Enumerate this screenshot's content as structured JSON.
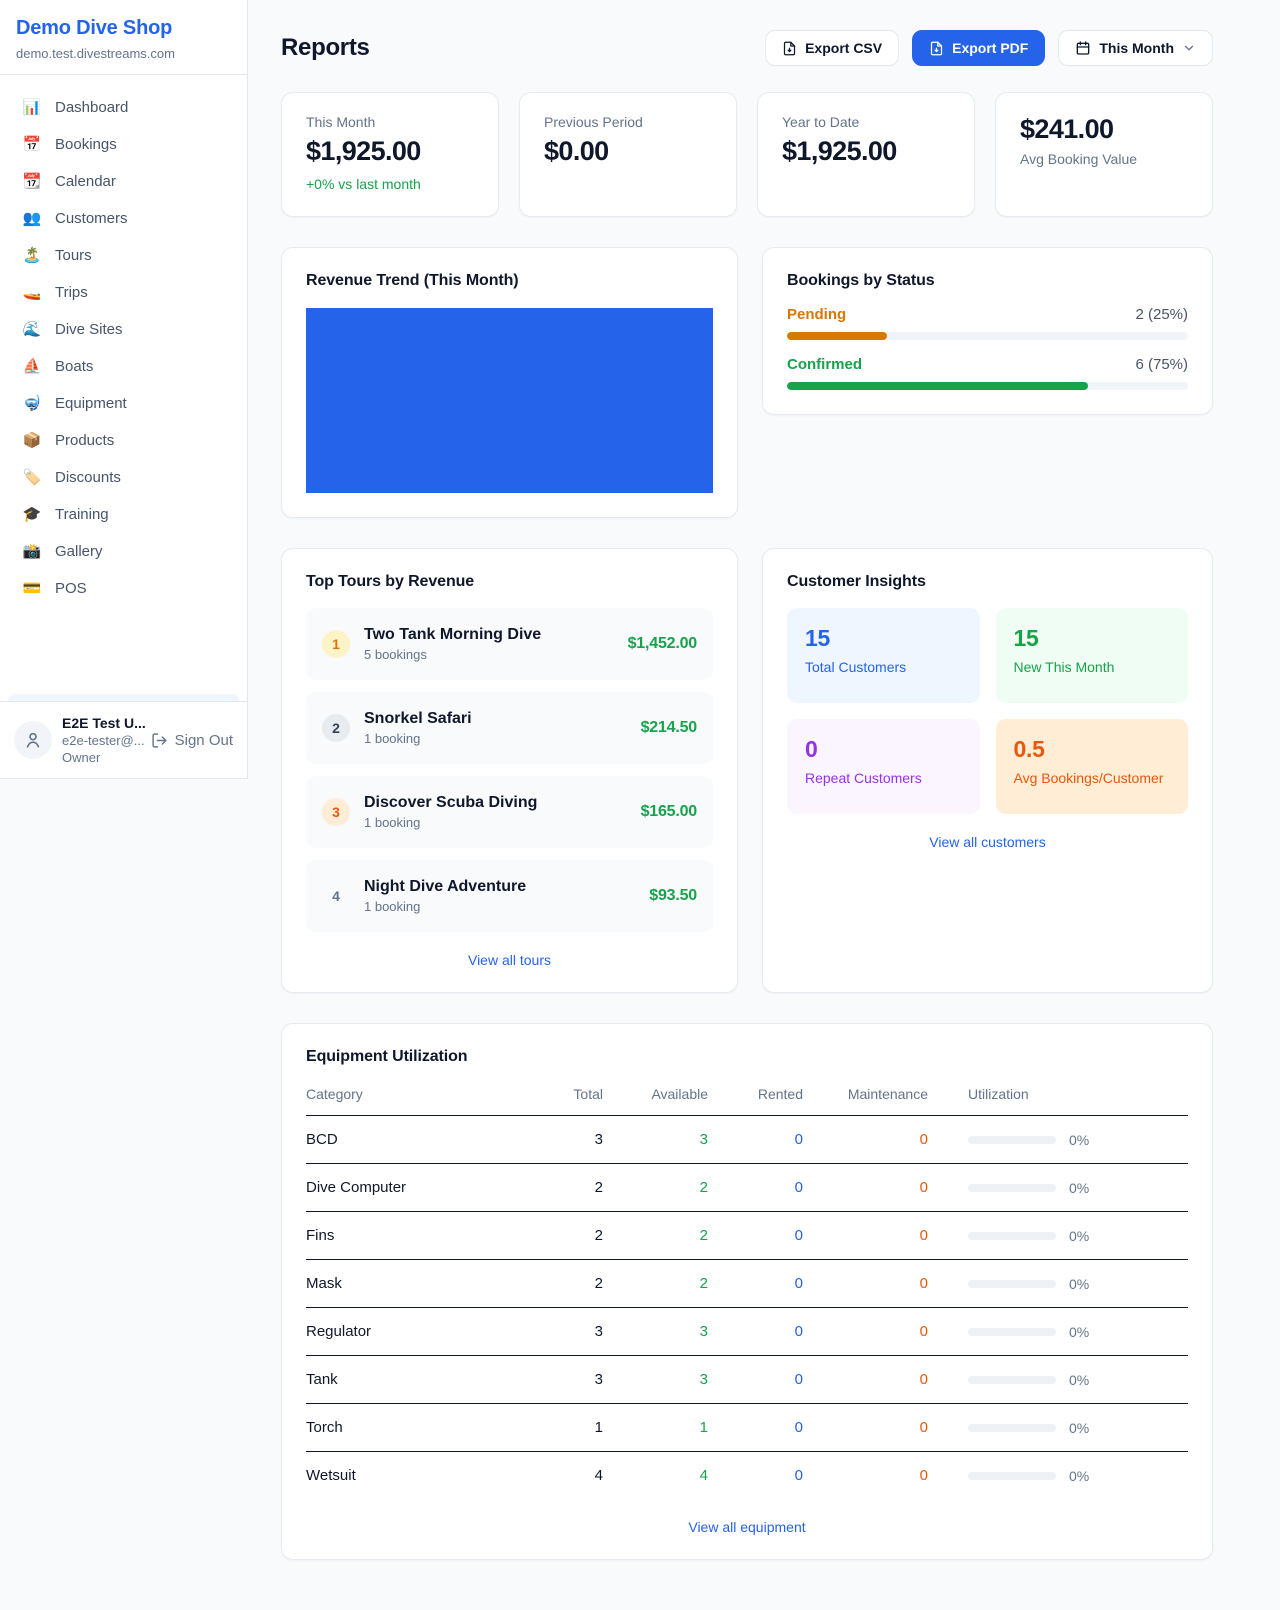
{
  "sidebar": {
    "brand": "Demo Dive Shop",
    "domain": "demo.test.divestreams.com",
    "items": [
      {
        "key": "dashboard",
        "icon": "📊",
        "label": "Dashboard"
      },
      {
        "key": "bookings",
        "icon": "📅",
        "label": "Bookings"
      },
      {
        "key": "calendar",
        "icon": "📆",
        "label": "Calendar"
      },
      {
        "key": "customers",
        "icon": "👥",
        "label": "Customers"
      },
      {
        "key": "tours",
        "icon": "🏝️",
        "label": "Tours"
      },
      {
        "key": "trips",
        "icon": "🚤",
        "label": "Trips"
      },
      {
        "key": "dive-sites",
        "icon": "🌊",
        "label": "Dive Sites"
      },
      {
        "key": "boats",
        "icon": "⛵",
        "label": "Boats"
      },
      {
        "key": "equipment",
        "icon": "🤿",
        "label": "Equipment"
      },
      {
        "key": "products",
        "icon": "📦",
        "label": "Products"
      },
      {
        "key": "discounts",
        "icon": "🏷️",
        "label": "Discounts"
      },
      {
        "key": "training",
        "icon": "🎓",
        "label": "Training"
      },
      {
        "key": "gallery",
        "icon": "📸",
        "label": "Gallery"
      },
      {
        "key": "pos",
        "icon": "💳",
        "label": "POS"
      }
    ],
    "user": {
      "name": "E2E Test U...",
      "email": "e2e-tester@...",
      "role": "Owner",
      "sign_out": "Sign Out"
    }
  },
  "header": {
    "title": "Reports",
    "export_csv": "Export CSV",
    "export_pdf": "Export PDF",
    "period": "This Month"
  },
  "stats": [
    {
      "label": "This Month",
      "value": "$1,925.00",
      "note": "+0% vs last month"
    },
    {
      "label": "Previous Period",
      "value": "$0.00"
    },
    {
      "label": "Year to Date",
      "value": "$1,925.00"
    },
    {
      "label": "Avg Booking Value",
      "value": "$241.00",
      "value_first": true
    }
  ],
  "revenue_trend": {
    "title": "Revenue Trend (This Month)",
    "bar_color": "#2563eb"
  },
  "bookings_by_status": {
    "title": "Bookings by Status",
    "rows": [
      {
        "label": "Pending",
        "value": "2 (25%)",
        "pct": 25,
        "color": "#d97706"
      },
      {
        "label": "Confirmed",
        "value": "6 (75%)",
        "pct": 75,
        "color": "#16a34a"
      }
    ]
  },
  "top_tours": {
    "title": "Top Tours by Revenue",
    "items": [
      {
        "rank": "1",
        "name": "Two Tank Morning Dive",
        "sub": "5 bookings",
        "amount": "$1,452.00",
        "badge_bg": "#fef3c7",
        "badge_color": "#d97706"
      },
      {
        "rank": "2",
        "name": "Snorkel Safari",
        "sub": "1 booking",
        "amount": "$214.50",
        "badge_bg": "#e8ecf1",
        "badge_color": "#334155"
      },
      {
        "rank": "3",
        "name": "Discover Scuba Diving",
        "sub": "1 booking",
        "amount": "$165.00",
        "badge_bg": "#ffedd5",
        "badge_color": "#ea580c"
      },
      {
        "rank": "4",
        "name": "Night Dive Adventure",
        "sub": "1 booking",
        "amount": "$93.50",
        "badge_bg": "transparent",
        "badge_color": "#64748b"
      }
    ],
    "view_all": "View all tours"
  },
  "customer_insights": {
    "title": "Customer Insights",
    "tiles": [
      {
        "value": "15",
        "label": "Total Customers",
        "bg": "#eff6ff",
        "color": "#2563eb"
      },
      {
        "value": "15",
        "label": "New This Month",
        "bg": "#f0fdf4",
        "color": "#16a34a"
      },
      {
        "value": "0",
        "label": "Repeat Customers",
        "bg": "#faf5ff",
        "color": "#9333ea"
      },
      {
        "value": "0.5",
        "label": "Avg Bookings/Customer",
        "bg": "#ffedd5",
        "color": "#ea580c"
      }
    ],
    "view_all": "View all customers"
  },
  "equipment": {
    "title": "Equipment Utilization",
    "columns": [
      "Category",
      "Total",
      "Available",
      "Rented",
      "Maintenance",
      "Utilization"
    ],
    "rows": [
      {
        "category": "BCD",
        "total": "3",
        "available": "3",
        "rented": "0",
        "maintenance": "0",
        "utilization_pct": 0,
        "utilization": "0%"
      },
      {
        "category": "Dive Computer",
        "total": "2",
        "available": "2",
        "rented": "0",
        "maintenance": "0",
        "utilization_pct": 0,
        "utilization": "0%"
      },
      {
        "category": "Fins",
        "total": "2",
        "available": "2",
        "rented": "0",
        "maintenance": "0",
        "utilization_pct": 0,
        "utilization": "0%"
      },
      {
        "category": "Mask",
        "total": "2",
        "available": "2",
        "rented": "0",
        "maintenance": "0",
        "utilization_pct": 0,
        "utilization": "0%"
      },
      {
        "category": "Regulator",
        "total": "3",
        "available": "3",
        "rented": "0",
        "maintenance": "0",
        "utilization_pct": 0,
        "utilization": "0%"
      },
      {
        "category": "Tank",
        "total": "3",
        "available": "3",
        "rented": "0",
        "maintenance": "0",
        "utilization_pct": 0,
        "utilization": "0%"
      },
      {
        "category": "Torch",
        "total": "1",
        "available": "1",
        "rented": "0",
        "maintenance": "0",
        "utilization_pct": 0,
        "utilization": "0%"
      },
      {
        "category": "Wetsuit",
        "total": "4",
        "available": "4",
        "rented": "0",
        "maintenance": "0",
        "utilization_pct": 0,
        "utilization": "0%"
      }
    ],
    "view_all": "View all equipment"
  }
}
